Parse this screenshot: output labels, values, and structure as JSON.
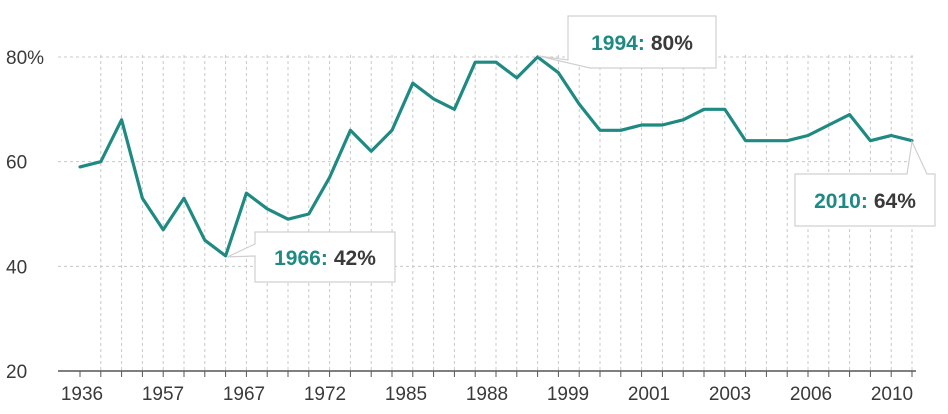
{
  "chart_data": {
    "type": "line",
    "x_tick_labels": [
      "1936",
      "1957",
      "1967",
      "1972",
      "1985",
      "1988",
      "1999",
      "2001",
      "2003",
      "2006",
      "2010"
    ],
    "y_tick_labels": [
      "20",
      "40",
      "60",
      "80%"
    ],
    "ylim": [
      20,
      80
    ],
    "y_ticks": [
      20,
      40,
      60,
      80
    ],
    "grid": true,
    "series": [
      {
        "values": [
          59,
          60,
          68,
          53,
          47,
          53,
          45,
          42,
          54,
          51,
          49,
          50,
          57,
          66,
          62,
          66,
          75,
          72,
          70,
          79,
          79,
          76,
          80,
          77,
          71,
          66,
          66,
          67,
          67,
          68,
          70,
          70,
          64,
          64,
          64,
          65,
          67,
          69,
          64,
          65,
          64
        ]
      }
    ],
    "annotations": [
      {
        "year": "1966",
        "sep": ":",
        "value": "42%",
        "point_index": 7
      },
      {
        "year": "1994",
        "sep": ":",
        "value": "80%",
        "point_index": 22
      },
      {
        "year": "2010",
        "sep": ":",
        "value": "64%",
        "point_index": 40
      }
    ]
  },
  "colors": {
    "line": "#1f8a82",
    "accent_text": "#1f8a82",
    "value_text": "#3a3a3a",
    "grid": "#c8c8c8",
    "axis": "#555555"
  }
}
